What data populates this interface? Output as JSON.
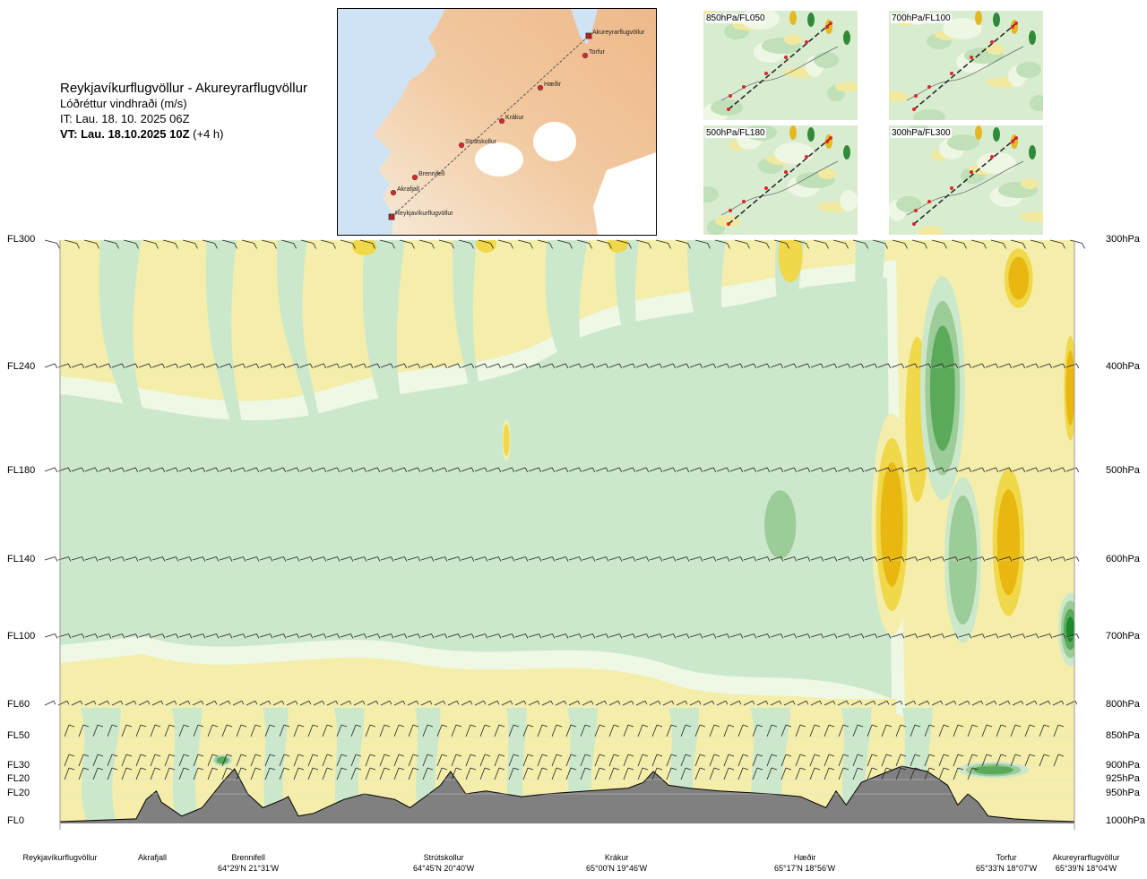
{
  "header": {
    "route": "Reykjavíkurflugvöllur - Akureyrarflugvöllur",
    "parameter": "Lóðréttur vindhraði (m/s)",
    "it": "IT: Lau. 18. 10. 2025 06Z",
    "vt_bold": "VT: Lau. 18.10.2025 10Z",
    "vt_rest": "(+4 h)"
  },
  "map": {
    "points": [
      "Reykjavíkurflugvöllur",
      "Akrafjall",
      "Brennifell",
      "Strútskollur",
      "Krákur",
      "Hæðir",
      "Torfur",
      "Akureyrarflugvöllur"
    ]
  },
  "minimaps": [
    {
      "label": "850hPa/FL050"
    },
    {
      "label": "700hPa/FL100"
    },
    {
      "label": "500hPa/FL180"
    },
    {
      "label": "300hPa/FL300"
    }
  ],
  "chart_data": {
    "type": "heatmap",
    "title": "Reykjavíkurflugvöllur - Akureyrarflugvöllur",
    "variable": "Lóðréttur vindhraði (m/s)",
    "x_stations": [
      {
        "name": "Reykjavíkurflugvöllur",
        "coord": "",
        "dist": 0.0
      },
      {
        "name": "Akrafjall",
        "coord": "",
        "dist": 0.09
      },
      {
        "name": "Brennifell",
        "coord": "64°29'N 21°31'W",
        "dist": 0.19
      },
      {
        "name": "Strútskollur",
        "coord": "64°45'N 20°40'W",
        "dist": 0.38
      },
      {
        "name": "Krákur",
        "coord": "65°00'N 19°46'W",
        "dist": 0.57
      },
      {
        "name": "Hæðir",
        "coord": "65°17'N 18°56'W",
        "dist": 0.76
      },
      {
        "name": "Torfur",
        "coord": "65°33'N 18°07'W",
        "dist": 0.93
      },
      {
        "name": "Akureyrarflugvöllur",
        "coord": "65°39'N 18°04'W",
        "dist": 1.0
      }
    ],
    "y_levels": [
      {
        "fl": "FL300",
        "hpa": "300hPa",
        "p": 300
      },
      {
        "fl": "FL240",
        "hpa": "400hPa",
        "p": 400
      },
      {
        "fl": "FL180",
        "hpa": "500hPa",
        "p": 500
      },
      {
        "fl": "FL140",
        "hpa": "600hPa",
        "p": 600
      },
      {
        "fl": "FL100",
        "hpa": "700hPa",
        "p": 700
      },
      {
        "fl": "FL60",
        "hpa": "800hPa",
        "p": 800
      },
      {
        "fl": "FL50",
        "hpa": "850hPa",
        "p": 850
      },
      {
        "fl": "FL30",
        "hpa": "900hPa",
        "p": 900
      },
      {
        "fl": "FL20",
        "hpa": "925hPa",
        "p": 925
      },
      {
        "fl": "FL20",
        "hpa": "950hPa",
        "p": 950
      },
      {
        "fl": "FL0",
        "hpa": "1000hPa",
        "p": 1000
      }
    ],
    "ylim": [
      1000,
      300
    ],
    "color_scale": [
      {
        "value": -2.0,
        "color": "#1a8a2a"
      },
      {
        "value": -1.0,
        "color": "#5aaa5a"
      },
      {
        "value": -0.5,
        "color": "#9ccc98"
      },
      {
        "value": -0.2,
        "color": "#cce8cc"
      },
      {
        "value": -0.05,
        "color": "#eef8e4"
      },
      {
        "value": 0.05,
        "color": "#f4eeaa"
      },
      {
        "value": 0.3,
        "color": "#f0d84a"
      },
      {
        "value": 0.8,
        "color": "#e8b810"
      },
      {
        "value": 1.5,
        "color": "#d88a18"
      }
    ],
    "features": [
      {
        "kind": "updraft",
        "x": 0.82,
        "p": 560,
        "w": 0.02,
        "h": 250,
        "value": 0.9
      },
      {
        "kind": "updraft",
        "x": 0.845,
        "p": 450,
        "w": 0.015,
        "h": 200,
        "value": 0.6
      },
      {
        "kind": "downdraft",
        "x": 0.87,
        "p": 420,
        "w": 0.022,
        "h": 200,
        "value": -1.8
      },
      {
        "kind": "downdraft",
        "x": 0.89,
        "p": 600,
        "w": 0.018,
        "h": 200,
        "value": -0.9
      },
      {
        "kind": "updraft",
        "x": 0.935,
        "p": 580,
        "w": 0.02,
        "h": 220,
        "value": 1.0
      },
      {
        "kind": "updraft",
        "x": 0.945,
        "p": 330,
        "w": 0.018,
        "h": 60,
        "value": 0.8
      },
      {
        "kind": "downdraft",
        "x": 0.996,
        "p": 690,
        "w": 0.012,
        "h": 100,
        "value": -2.0
      },
      {
        "kind": "updraft",
        "x": 0.996,
        "p": 420,
        "w": 0.008,
        "h": 120,
        "value": 1.3
      },
      {
        "kind": "downdraft",
        "x": 0.92,
        "p": 907,
        "w": 0.035,
        "h": 30,
        "value": -1.8
      },
      {
        "kind": "downdraft",
        "x": 0.16,
        "p": 890,
        "w": 0.01,
        "h": 20,
        "value": -1.0
      },
      {
        "kind": "updraft",
        "x": 0.44,
        "p": 470,
        "w": 0.004,
        "h": 40,
        "value": 0.5
      },
      {
        "kind": "downdraft",
        "x": 0.55,
        "p": 470,
        "w": 0.015,
        "h": 80,
        "value": -0.4
      },
      {
        "kind": "downdraft",
        "x": 0.71,
        "p": 560,
        "w": 0.02,
        "h": 100,
        "value": -0.5
      }
    ],
    "terrain": [
      {
        "x": 0.0,
        "p": 1000
      },
      {
        "x": 0.075,
        "p": 995
      },
      {
        "x": 0.085,
        "p": 960
      },
      {
        "x": 0.095,
        "p": 945
      },
      {
        "x": 0.1,
        "p": 965
      },
      {
        "x": 0.12,
        "p": 990
      },
      {
        "x": 0.14,
        "p": 975
      },
      {
        "x": 0.16,
        "p": 930
      },
      {
        "x": 0.172,
        "p": 905
      },
      {
        "x": 0.185,
        "p": 950
      },
      {
        "x": 0.2,
        "p": 975
      },
      {
        "x": 0.22,
        "p": 960
      },
      {
        "x": 0.225,
        "p": 955
      },
      {
        "x": 0.235,
        "p": 990
      },
      {
        "x": 0.25,
        "p": 985
      },
      {
        "x": 0.28,
        "p": 960
      },
      {
        "x": 0.3,
        "p": 950
      },
      {
        "x": 0.33,
        "p": 960
      },
      {
        "x": 0.345,
        "p": 975
      },
      {
        "x": 0.36,
        "p": 955
      },
      {
        "x": 0.375,
        "p": 935
      },
      {
        "x": 0.385,
        "p": 910
      },
      {
        "x": 0.4,
        "p": 950
      },
      {
        "x": 0.42,
        "p": 945
      },
      {
        "x": 0.455,
        "p": 955
      },
      {
        "x": 0.48,
        "p": 950
      },
      {
        "x": 0.52,
        "p": 945
      },
      {
        "x": 0.56,
        "p": 940
      },
      {
        "x": 0.575,
        "p": 930
      },
      {
        "x": 0.585,
        "p": 910
      },
      {
        "x": 0.6,
        "p": 935
      },
      {
        "x": 0.62,
        "p": 940
      },
      {
        "x": 0.65,
        "p": 945
      },
      {
        "x": 0.7,
        "p": 950
      },
      {
        "x": 0.73,
        "p": 955
      },
      {
        "x": 0.755,
        "p": 975
      },
      {
        "x": 0.765,
        "p": 945
      },
      {
        "x": 0.775,
        "p": 970
      },
      {
        "x": 0.79,
        "p": 930
      },
      {
        "x": 0.81,
        "p": 915
      },
      {
        "x": 0.83,
        "p": 900
      },
      {
        "x": 0.855,
        "p": 910
      },
      {
        "x": 0.875,
        "p": 935
      },
      {
        "x": 0.885,
        "p": 970
      },
      {
        "x": 0.895,
        "p": 950
      },
      {
        "x": 0.905,
        "p": 965
      },
      {
        "x": 0.915,
        "p": 990
      },
      {
        "x": 0.94,
        "p": 995
      },
      {
        "x": 0.97,
        "p": 998
      },
      {
        "x": 1.0,
        "p": 1000
      }
    ]
  }
}
